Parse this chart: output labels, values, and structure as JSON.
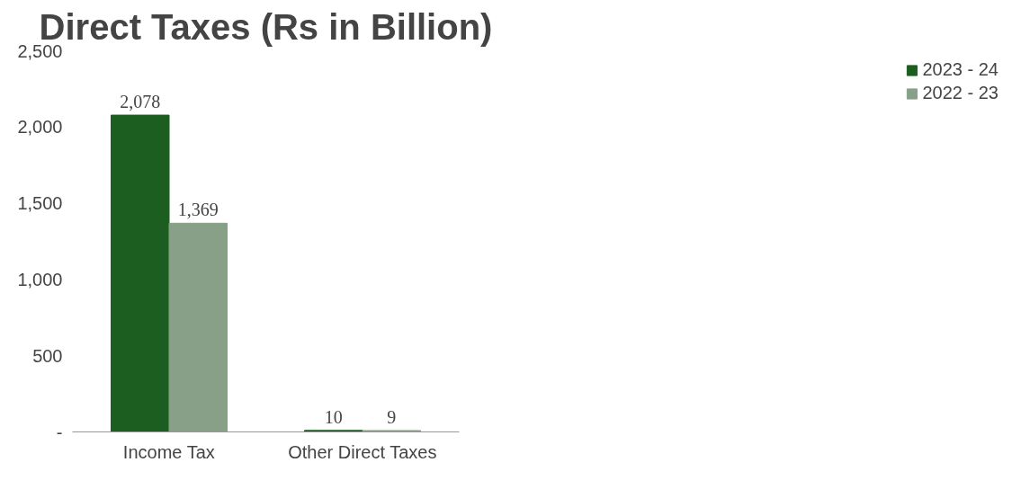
{
  "chart_data": {
    "type": "bar",
    "title": "Direct Taxes (Rs in Billion)",
    "categories": [
      "Income Tax",
      "Other Direct Taxes"
    ],
    "series": [
      {
        "name": "2023 - 24",
        "color": "#1b5e20",
        "values": [
          2078,
          10
        ],
        "value_labels": [
          "2,078",
          "10"
        ]
      },
      {
        "name": "2022 - 23",
        "color": "#87a087",
        "values": [
          1369,
          9
        ],
        "value_labels": [
          "1,369",
          "9"
        ]
      }
    ],
    "ylim": [
      0,
      2500
    ],
    "yticks": [
      {
        "value": 0,
        "label": "-"
      },
      {
        "value": 500,
        "label": "500"
      },
      {
        "value": 1000,
        "label": "1,000"
      },
      {
        "value": 1500,
        "label": "1,500"
      },
      {
        "value": 2000,
        "label": "2,000"
      },
      {
        "value": 2500,
        "label": "2,500"
      }
    ],
    "grid": false,
    "legend": "right"
  }
}
